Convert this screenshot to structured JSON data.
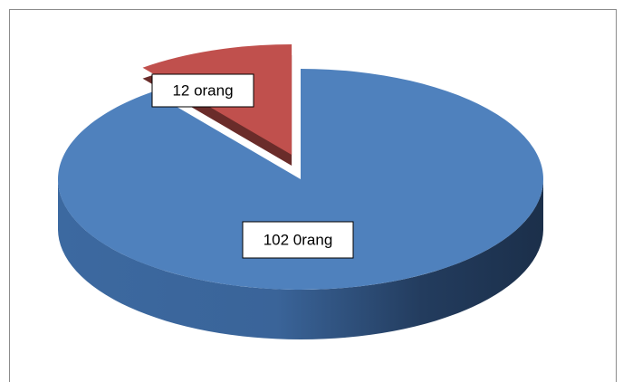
{
  "chart_data": {
    "type": "pie",
    "three_d": true,
    "values": [
      102,
      12
    ],
    "value_labels": [
      "102 0rang",
      "12 orang"
    ],
    "colors": [
      "#4f81bd",
      "#c0504d"
    ],
    "exploded": [
      false,
      true
    ]
  }
}
